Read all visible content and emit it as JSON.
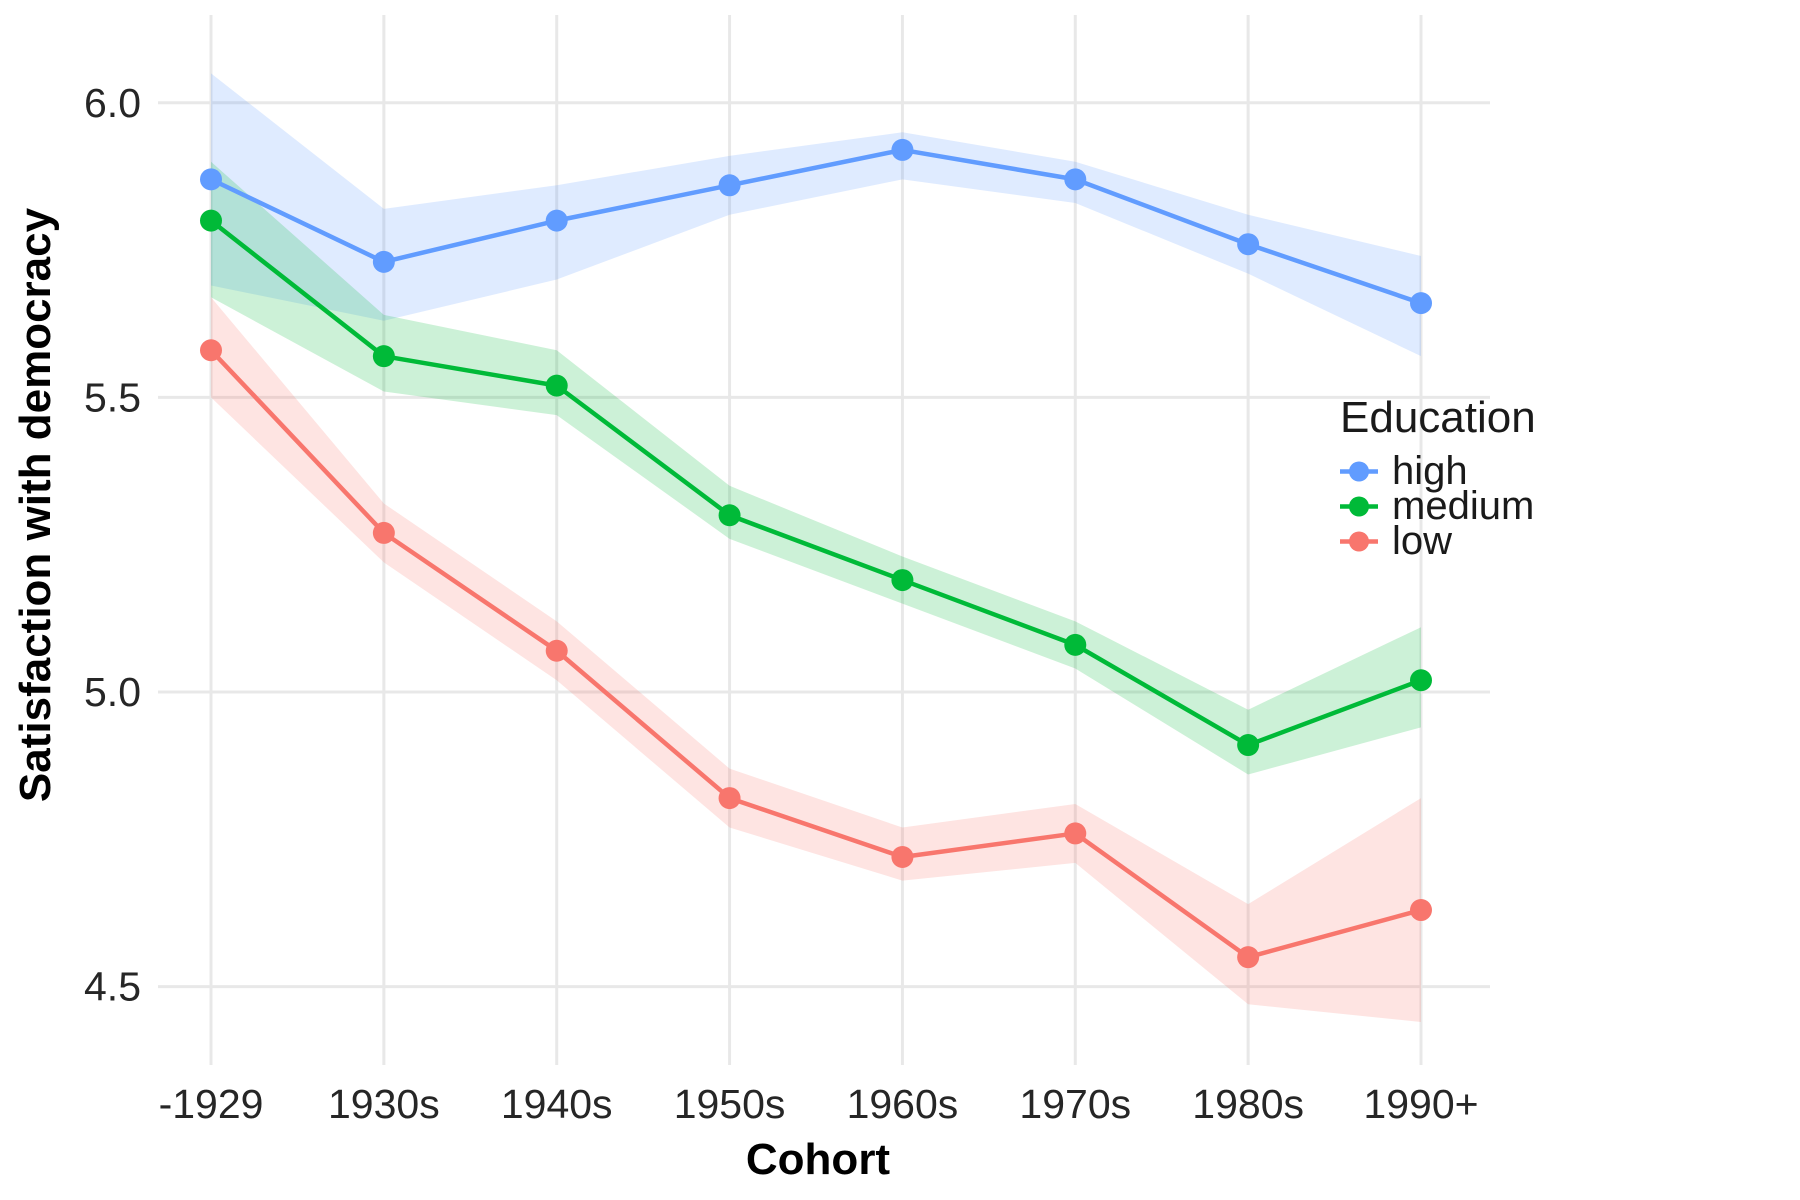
{
  "chart_data": {
    "type": "line",
    "title": "",
    "xlabel": "Cohort",
    "ylabel": "Satisfaction with democracy",
    "categories": [
      "-1929",
      "1930s",
      "1940s",
      "1950s",
      "1960s",
      "1970s",
      "1980s",
      "1990+"
    ],
    "y_ticks": [
      {
        "label": "6.0",
        "value": 6.0
      },
      {
        "label": "5.5",
        "value": 5.5
      },
      {
        "label": "5.0",
        "value": 5.0
      },
      {
        "label": "4.5",
        "value": 4.5
      }
    ],
    "ylim": [
      4.367,
      6.149
    ],
    "grid": true,
    "legend": {
      "title": "Education",
      "position": "right",
      "entries": [
        {
          "label": "high",
          "color": "#619CFF"
        },
        {
          "label": "medium",
          "color": "#00BA38"
        },
        {
          "label": "low",
          "color": "#F8766D"
        }
      ]
    },
    "series": [
      {
        "name": "high",
        "color": "#619CFF",
        "values": [
          5.87,
          5.73,
          5.8,
          5.86,
          5.92,
          5.87,
          5.76,
          5.66
        ],
        "upper": [
          6.05,
          5.82,
          5.86,
          5.91,
          5.95,
          5.9,
          5.81,
          5.74
        ],
        "lower": [
          5.69,
          5.63,
          5.7,
          5.81,
          5.87,
          5.83,
          5.71,
          5.57
        ]
      },
      {
        "name": "medium",
        "color": "#00BA38",
        "values": [
          5.8,
          5.57,
          5.52,
          5.3,
          5.19,
          5.08,
          4.91,
          5.02
        ],
        "upper": [
          5.9,
          5.64,
          5.58,
          5.35,
          5.23,
          5.12,
          4.97,
          5.11
        ],
        "lower": [
          5.67,
          5.51,
          5.47,
          5.26,
          5.15,
          5.04,
          4.86,
          4.94
        ]
      },
      {
        "name": "low",
        "color": "#F8766D",
        "values": [
          5.58,
          5.27,
          5.07,
          4.82,
          4.72,
          4.76,
          4.55,
          4.63
        ],
        "upper": [
          5.67,
          5.32,
          5.12,
          4.87,
          4.77,
          4.81,
          4.64,
          4.82
        ],
        "lower": [
          5.5,
          5.22,
          5.02,
          4.77,
          4.68,
          4.71,
          4.47,
          4.44
        ]
      }
    ]
  },
  "styles": {
    "grid_color": "#E8E8E8",
    "background": "#FFFFFF",
    "ribbon_alpha": 0.2,
    "line_width": 4.5,
    "point_radius": 11
  }
}
